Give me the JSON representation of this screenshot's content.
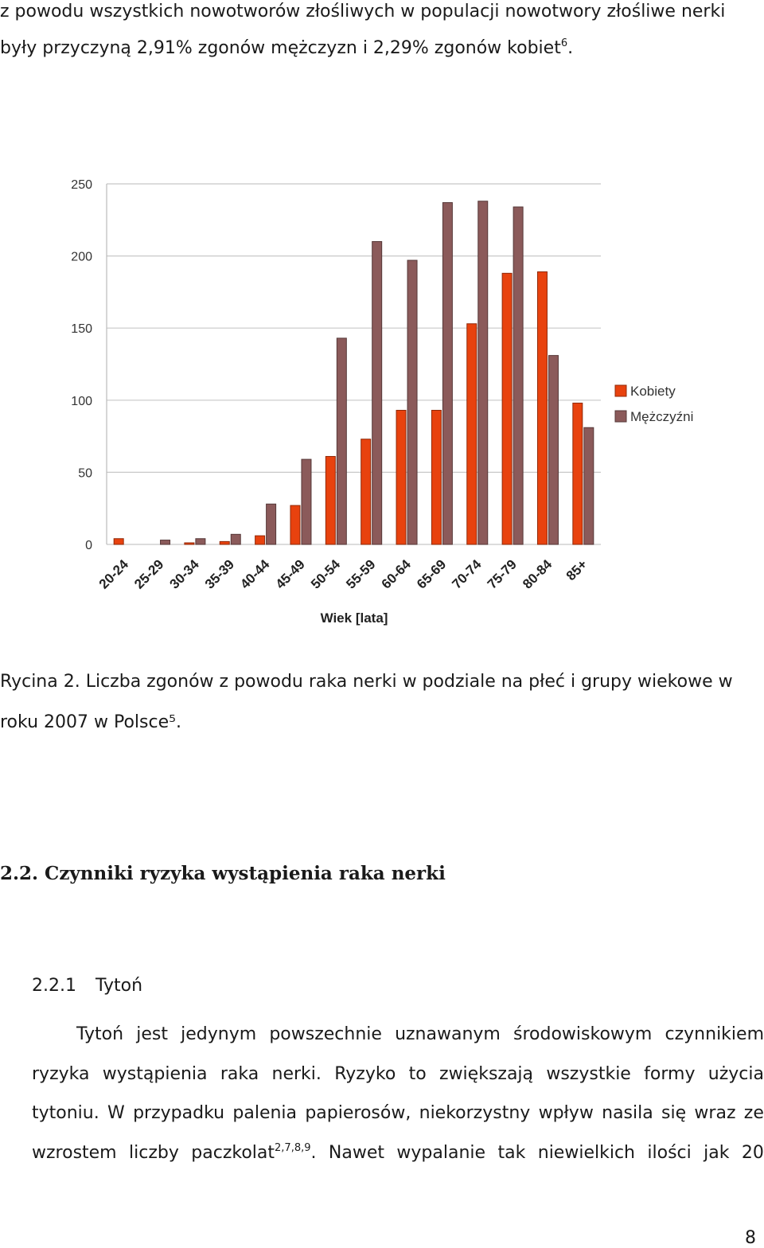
{
  "intro": {
    "line1": "z powodu wszystkich nowotworów złośliwych w populacji   nowotwory złośliwe nerki",
    "line2": "były przyczyną 2,91% zgonów mężczyzn i 2,29% zgonów kobiet",
    "line2_sup": "6",
    "line2_end": "."
  },
  "chart_data": {
    "type": "bar",
    "categories": [
      "20-24",
      "25-29",
      "30-34",
      "35-39",
      "40-44",
      "45-49",
      "50-54",
      "55-59",
      "60-64",
      "65-69",
      "70-74",
      "75-79",
      "80-84",
      "85+"
    ],
    "series": [
      {
        "name": "Kobiety",
        "color": "#e8420e",
        "values": [
          4,
          0,
          1,
          2,
          6,
          27,
          61,
          73,
          93,
          93,
          153,
          188,
          189,
          98
        ]
      },
      {
        "name": "Mężczyźni",
        "color": "#8b5a5a",
        "values": [
          0,
          3,
          4,
          7,
          28,
          59,
          143,
          210,
          197,
          237,
          238,
          234,
          131,
          81
        ]
      }
    ],
    "xlabel": "Wiek [lata]",
    "ylabel": "",
    "ylim": [
      0,
      250
    ],
    "yticks": [
      0,
      50,
      100,
      150,
      200,
      250
    ],
    "grid": true,
    "legend": "right"
  },
  "caption": {
    "line1": "Rycina 2. Liczba zgonów z powodu raka nerki w podziale na płeć i grupy wiekowe w",
    "line2": "roku 2007 w Polsce⁵."
  },
  "section": {
    "heading": "2.2. Czynniki ryzyka wystąpienia raka nerki",
    "sub_number": "2.2.1",
    "sub_title": "Tytoń"
  },
  "paragraph": {
    "line1": "Tytoń jest jedynym powszechnie uznawanym środowiskowym czynnikiem",
    "line2": "ryzyka wystąpienia raka nerki.  Ryzyko to zwiększają wszystkie formy użycia",
    "line3": "tytoniu. W przypadku palenia papierosów, niekorzystny wpływ nasila się wraz ze",
    "line4a": "wzrostem liczby paczkolat",
    "line4_sup": "2,7,8,9",
    "line4b": ". Nawet wypalanie tak niewielkich ilości jak 20"
  },
  "page_number": "8"
}
